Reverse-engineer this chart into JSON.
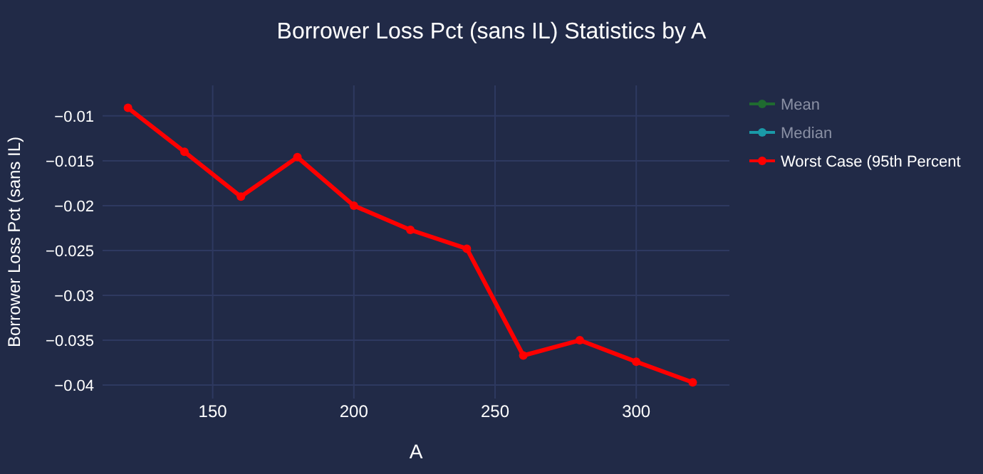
{
  "chart_data": {
    "type": "line",
    "title": "Borrower Loss Pct (sans IL) Statistics by A",
    "xlabel": "A",
    "ylabel": "Borrower Loss Pct (sans IL)",
    "x": [
      120,
      140,
      160,
      180,
      200,
      220,
      240,
      260,
      280,
      300,
      320
    ],
    "series": [
      {
        "name": "Mean",
        "color": "#1f6b30",
        "values": [
          null,
          null,
          null,
          null,
          null,
          null,
          null,
          null,
          null,
          null,
          null
        ]
      },
      {
        "name": "Median",
        "color": "#1a9aa8",
        "values": [
          null,
          null,
          null,
          null,
          null,
          null,
          null,
          null,
          null,
          null,
          null
        ]
      },
      {
        "name": "Worst Case (95th Percent",
        "color": "#ff0000",
        "values": [
          -0.0091,
          -0.014,
          -0.019,
          -0.0146,
          -0.02,
          -0.0227,
          -0.0248,
          -0.0367,
          -0.035,
          -0.0374,
          -0.0397
        ]
      }
    ],
    "xlim": [
      111,
      333
    ],
    "xticks": [
      150,
      200,
      250,
      300
    ],
    "ylim": [
      -0.0415,
      -0.0066
    ],
    "yticks": [
      -0.01,
      -0.015,
      -0.02,
      -0.025,
      -0.03,
      -0.035,
      -0.04
    ],
    "grid": true,
    "legend": "top right",
    "marker": "circle",
    "line_style": "solid"
  }
}
